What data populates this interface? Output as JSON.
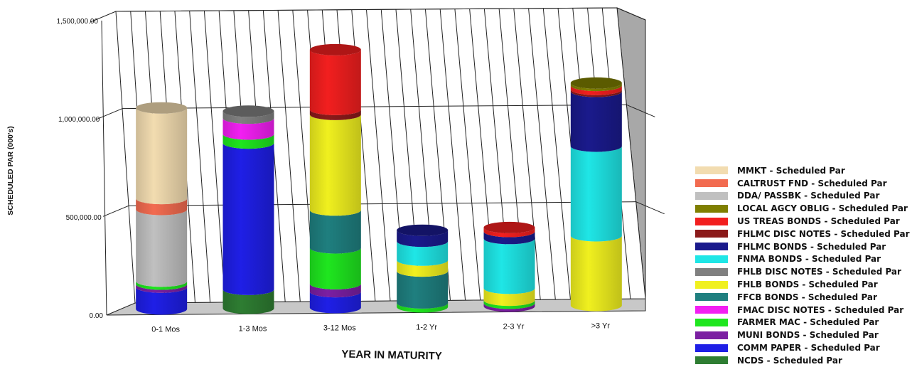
{
  "chart_data": {
    "type": "bar",
    "stacked": true,
    "three_d": true,
    "title": "",
    "xlabel": "YEAR IN MATURITY",
    "ylabel": "SCHEDULED PAR (000's)",
    "ylim": [
      0,
      1500000
    ],
    "yticks": [
      "0.00",
      "500,000.00",
      "1,000,000.00",
      "1,500,000.00"
    ],
    "ytick_values": [
      0,
      500000,
      1000000,
      1500000
    ],
    "grid": true,
    "legend_position": "right",
    "categories": [
      "0-1 Mos",
      "1-3 Mos",
      "3-12 Mos",
      "1-2 Yr",
      "2-3 Yr",
      ">3 Yr"
    ],
    "series": [
      {
        "name": "NCDS - Scheduled Par",
        "color": "#2e7d32",
        "values": [
          0,
          95000,
          0,
          0,
          0,
          0
        ]
      },
      {
        "name": "COMM PAPER - Scheduled Par",
        "color": "#1f1fe6",
        "values": [
          110000,
          735000,
          80000,
          0,
          0,
          0
        ]
      },
      {
        "name": "MUNI BONDS - Scheduled Par",
        "color": "#7b1fa2",
        "values": [
          15000,
          0,
          40000,
          0,
          15000,
          0
        ]
      },
      {
        "name": "FARMER MAC - Scheduled Par",
        "color": "#1fe61f",
        "values": [
          15000,
          45000,
          180000,
          20000,
          15000,
          0
        ]
      },
      {
        "name": "FMAC DISC NOTES - Scheduled Par",
        "color": "#f21ff2",
        "values": [
          0,
          80000,
          0,
          0,
          0,
          0
        ]
      },
      {
        "name": "FFCB BONDS - Scheduled Par",
        "color": "#1f7f7f",
        "values": [
          0,
          0,
          190000,
          160000,
          0,
          0
        ]
      },
      {
        "name": "FHLB BONDS - Scheduled Par",
        "color": "#f0f01f",
        "values": [
          0,
          0,
          480000,
          55000,
          60000,
          350000
        ]
      },
      {
        "name": "FHLB DISC NOTES - Scheduled Par",
        "color": "#808080",
        "values": [
          0,
          35000,
          0,
          0,
          0,
          0
        ]
      },
      {
        "name": "FNMA BONDS - Scheduled Par",
        "color": "#1fe6e6",
        "values": [
          0,
          0,
          0,
          95000,
          250000,
          450000
        ]
      },
      {
        "name": "FHLMC BONDS - Scheduled Par",
        "color": "#1a1a8c",
        "values": [
          0,
          0,
          0,
          55000,
          35000,
          275000
        ]
      },
      {
        "name": "FHLMC DISC NOTES - Scheduled Par",
        "color": "#8b1a1a",
        "values": [
          0,
          0,
          25000,
          0,
          0,
          10000
        ]
      },
      {
        "name": "US TREAS BONDS - Scheduled Par",
        "color": "#f21f1f",
        "values": [
          0,
          0,
          300000,
          0,
          20000,
          20000
        ]
      },
      {
        "name": "LOCAL AGCY OBLIG - Scheduled Par",
        "color": "#7f7f00",
        "values": [
          0,
          0,
          0,
          0,
          0,
          12000
        ]
      },
      {
        "name": "DDA/ PASSBK - Scheduled Par",
        "color": "#c0c0c0",
        "values": [
          360000,
          0,
          0,
          0,
          0,
          0
        ]
      },
      {
        "name": "CALTRUST FND - Scheduled Par",
        "color": "#f26b50",
        "values": [
          55000,
          0,
          0,
          0,
          0,
          0
        ]
      },
      {
        "name": "MMKT - Scheduled Par",
        "color": "#f2dcb0",
        "values": [
          455000,
          0,
          0,
          0,
          0,
          0
        ]
      }
    ]
  }
}
